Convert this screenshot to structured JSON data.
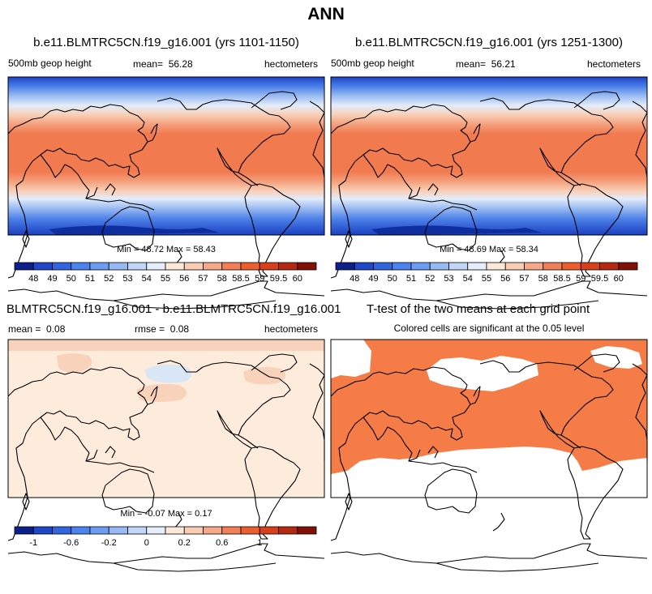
{
  "figure_title": "ANN",
  "chart_data": [
    {
      "type": "heatmap",
      "title": "b.e11.BLMTRC5CN.f19_g16.001 (yrs 1101-1150)",
      "left_label": "500mb geop height",
      "mean_label": "mean=",
      "mean_value": "56.28",
      "units": "hectometers",
      "min_label": "Min =",
      "min_value": "48.72",
      "max_label": "Max =",
      "max_value": "58.43"
    },
    {
      "type": "heatmap",
      "title": "b.e11.BLMTRC5CN.f19_g16.001 (yrs 1251-1300)",
      "left_label": "500mb geop height",
      "mean_label": "mean=",
      "mean_value": "56.21",
      "units": "hectometers",
      "min_label": "Min =",
      "min_value": "48.69",
      "max_label": "Max =",
      "max_value": "58.34"
    },
    {
      "type": "heatmap",
      "title": "BLMTRC5CN.f19_g16.001 - b.e11.BLMTRC5CN.f19_g16.001",
      "mean_label": "mean =",
      "mean_value": "0.08",
      "rmse_label": "rmse =",
      "rmse_value": "0.08",
      "units": "hectometers",
      "min_label": "Min =",
      "min_value": "-0.07",
      "max_label": "Max =",
      "max_value": "0.17"
    },
    {
      "type": "heatmap",
      "title": "T-test of the two means at each grid point",
      "subtitle": "Colored cells are significant at the 0.05 level"
    }
  ],
  "colorbars": {
    "absolute": {
      "colors": [
        "#0c1f8a",
        "#1f47c8",
        "#3266e0",
        "#4d83ee",
        "#6d9df2",
        "#97baf5",
        "#c2d6f8",
        "#e6eefb",
        "#fde9d9",
        "#f9cdb4",
        "#f6a98a",
        "#f27f58",
        "#ec5d2f",
        "#d83f1a",
        "#b52811",
        "#821006"
      ],
      "labels": [
        "48",
        "49",
        "50",
        "51",
        "52",
        "53",
        "54",
        "55",
        "56",
        "57",
        "58",
        "58.5",
        "59",
        "59.5",
        "60"
      ]
    },
    "difference": {
      "colors": [
        "#0c1f8a",
        "#1f47c8",
        "#3266e0",
        "#4d83ee",
        "#6d9df2",
        "#97baf5",
        "#c2d6f8",
        "#e6eefb",
        "#fde9d9",
        "#f9cdb4",
        "#f6a98a",
        "#f27f58",
        "#ec5d2f",
        "#d83f1a",
        "#b52811",
        "#821006"
      ],
      "labels": [
        "-1",
        "-0.6",
        "-0.2",
        "0",
        "0.2",
        "0.6",
        "1"
      ],
      "label_slots": [
        1,
        3,
        5,
        7,
        9,
        11,
        13
      ]
    }
  },
  "colors": {
    "cold": "#1a44c8",
    "mid": "#dbe6f6",
    "warm": "#f27a4f",
    "diff_background": "#fdebdc",
    "diff_positive": "#f9d2bc",
    "diff_negative": "#d9e6f6",
    "significant": "#f57b47"
  }
}
